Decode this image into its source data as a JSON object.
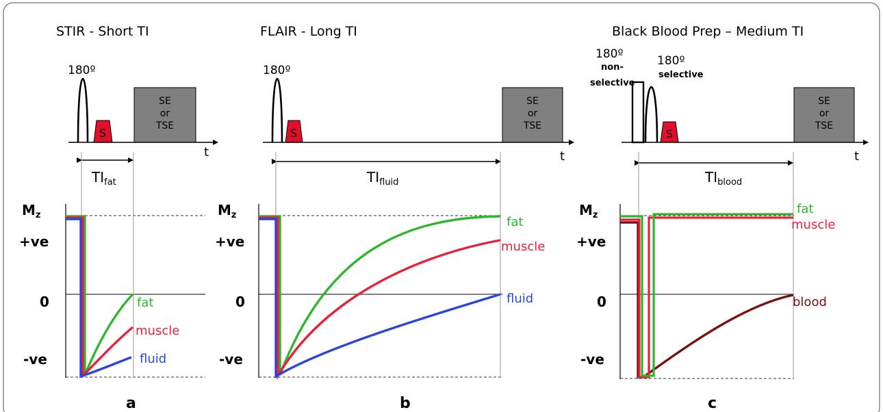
{
  "panels": [
    {
      "id": "a",
      "title": "STIR - Short TI",
      "letter": "a",
      "pulse_label": "180º",
      "spoiler": "S",
      "readout": [
        "SE",
        "or",
        "TSE"
      ],
      "time_axis": "t",
      "ti": {
        "base": "TI",
        "sub": "fat"
      },
      "mz": {
        "base": "M",
        "sub": "z"
      },
      "y_ticks": [
        "+ve",
        "0",
        "-ve"
      ],
      "curves": [
        {
          "name": "fat",
          "color": "#2cb82c",
          "label": "fat"
        },
        {
          "name": "muscle",
          "color": "#e8203c",
          "label": "muscle"
        },
        {
          "name": "fluid",
          "color": "#2a46d8",
          "label": "fluid"
        }
      ]
    },
    {
      "id": "b",
      "title": "FLAIR - Long TI",
      "letter": "b",
      "pulse_label": "180º",
      "spoiler": "S",
      "readout": [
        "SE",
        "or",
        "TSE"
      ],
      "time_axis": "t",
      "ti": {
        "base": "TI",
        "sub": "fluid"
      },
      "mz": {
        "base": "M",
        "sub": "z"
      },
      "y_ticks": [
        "+ve",
        "0",
        "-ve"
      ],
      "curves": [
        {
          "name": "fat",
          "color": "#2cb82c",
          "label": "fat"
        },
        {
          "name": "muscle",
          "color": "#e8203c",
          "label": "muscle"
        },
        {
          "name": "fluid",
          "color": "#2a46d8",
          "label": "fluid"
        }
      ]
    },
    {
      "id": "c",
      "title": "Black Blood Prep – Medium TI",
      "letter": "c",
      "pulse_label": "180º",
      "pulse_label_nonselective": [
        "non-",
        "selective"
      ],
      "pulse_label_selective": "selective",
      "spoiler": "S",
      "readout": [
        "SE",
        "or",
        "TSE"
      ],
      "time_axis": "t",
      "ti": {
        "base": "TI",
        "sub": "blood"
      },
      "mz": {
        "base": "M",
        "sub": "z"
      },
      "y_ticks": [
        "+ve",
        "0",
        "-ve"
      ],
      "curves": [
        {
          "name": "fat",
          "color": "#2cb82c",
          "label": "fat"
        },
        {
          "name": "muscle",
          "color": "#e8203c",
          "label": "muscle"
        },
        {
          "name": "blood",
          "color": "#7a1010",
          "label": "blood"
        }
      ]
    }
  ],
  "colors": {
    "spoiler_fill": "#e0102c",
    "readout_fill": "#808080",
    "axis": "#000000",
    "guide": "#9a9a9a"
  }
}
